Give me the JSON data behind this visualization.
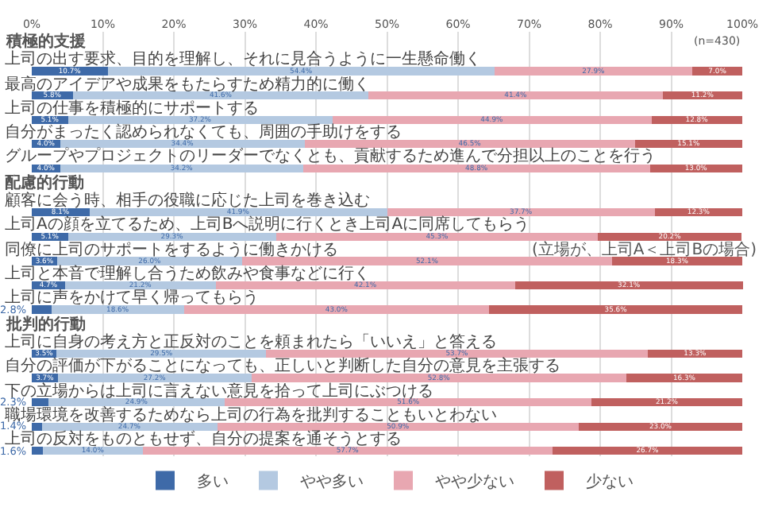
{
  "chart_data": {
    "type": "bar",
    "orientation": "horizontal",
    "stacked": true,
    "subtitle": "(n=430)",
    "categories": [
      "上司の出す要求、目的を理解し、それに見合うように一生懸命働く",
      "最高のアイデアや成果をもたらすため精力的に働く",
      "上司の仕事を積極的にサポートする",
      "自分がまったく認められなくても、周囲の手助けをする",
      "グループやプロジェクトのリーダーでなくとも、貢献するため進んで分担以上のことを行う",
      "顧客に会う時、相手の役職に応じた上司を巻き込む",
      "上司Aの顔を立てるため、上司Bへ説明に行くとき上司Aに同席してもらう\n(立場が、上司A＜上司Bの場合)",
      "同僚に上司のサポートをするように働きかける",
      "上司と本音で理解し合うため飲みや食事などに行く",
      "上司に声をかけて早く帰ってもらう",
      "上司に自身の考え方と正反対のことを頼まれたら「いいえ」と答える",
      "自分の評価が下がることになっても、正しいと判断した自分の意見を主張する",
      "下の立場からは上司に言えない意見を拾って上司にぶつける",
      "職場環境を改善するためなら上司の行為を批判することもいとわない",
      "上司の反対をものともせず、自分の提案を通そうとする"
    ],
    "series": [
      {
        "name": "多い",
        "color": "#3e6aa8",
        "values": [
          10.7,
          5.8,
          5.1,
          4.0,
          4.0,
          8.1,
          5.1,
          3.6,
          4.7,
          2.8,
          3.5,
          3.7,
          2.3,
          1.4,
          1.6
        ],
        "value_labels": [
          "10.7%",
          "5.8%",
          "5.1%",
          "4.0%",
          "4.0%",
          "8.1%",
          "5.1%",
          "3.6%",
          "4.7%",
          "2.8%",
          "3.5%",
          "3.7%",
          "2.3%",
          "1.4%",
          "1.6%"
        ]
      },
      {
        "name": "やや多い",
        "color": "#b4c9e1",
        "values": [
          54.4,
          41.6,
          37.2,
          34.4,
          34.2,
          41.9,
          29.3,
          26.0,
          21.2,
          18.6,
          29.5,
          27.2,
          24.9,
          24.7,
          14.0
        ],
        "value_labels": [
          "54.4%",
          "41.6%",
          "37.2%",
          "34.4%",
          "34.2%",
          "41.9%",
          "29.3%",
          "26.0%",
          "21.2%",
          "18.6%",
          "29.5%",
          "27.2%",
          "24.9%",
          "24.7%",
          "14.0%"
        ]
      },
      {
        "name": "やや少ない",
        "color": "#e8a7b1",
        "values": [
          27.9,
          41.4,
          44.9,
          46.5,
          48.8,
          37.7,
          45.3,
          52.1,
          42.1,
          43.0,
          53.7,
          52.8,
          51.6,
          50.9,
          57.7
        ],
        "value_labels": [
          "27.9%",
          "41.4%",
          "44.9%",
          "46.5%",
          "48.8%",
          "37.7%",
          "45.3%",
          "52.1%",
          "42.1%",
          "43.0%",
          "53.7%",
          "52.8%",
          "51.6%",
          "50.9%",
          "57.7%"
        ]
      },
      {
        "name": "少ない",
        "color": "#c0605f",
        "values": [
          7.0,
          11.2,
          12.8,
          15.1,
          13.0,
          12.3,
          20.2,
          18.3,
          32.1,
          35.6,
          13.3,
          16.3,
          21.2,
          23.0,
          26.7
        ],
        "value_labels": [
          "7.0%",
          "11.2%",
          "12.8%",
          "15.1%",
          "13.0%",
          "12.3%",
          "20.2%",
          "18.3%",
          "32.1%",
          "35.6%",
          "13.3%",
          "16.3%",
          "21.2%",
          "23.0%",
          "26.7%"
        ]
      }
    ],
    "xlim": [
      0,
      100.1
    ],
    "xticks": [
      {
        "value": 0,
        "label": "0%"
      },
      {
        "value": 10,
        "label": "10%"
      },
      {
        "value": 20,
        "label": "20%"
      },
      {
        "value": 30,
        "label": "30%"
      },
      {
        "value": 40,
        "label": "40%"
      },
      {
        "value": 50,
        "label": "50%"
      },
      {
        "value": 60,
        "label": "60%"
      },
      {
        "value": 70,
        "label": "70%"
      },
      {
        "value": 80,
        "label": "80%"
      },
      {
        "value": 90,
        "label": "90%"
      },
      {
        "value": 100,
        "label": "100%"
      }
    ],
    "grid": "x",
    "legend": "bottom",
    "annotations": [
      "積極的支援",
      "配慮的行動",
      "批判的行動"
    ]
  }
}
